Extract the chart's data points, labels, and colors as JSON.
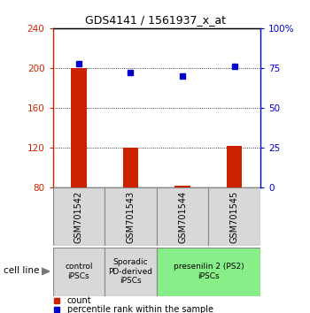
{
  "title": "GDS4141 / 1561937_x_at",
  "samples": [
    "GSM701542",
    "GSM701543",
    "GSM701544",
    "GSM701545"
  ],
  "bar_values": [
    200,
    120,
    82,
    122
  ],
  "bar_baseline": 80,
  "percentile_values": [
    78,
    72,
    70,
    76
  ],
  "ylim_left": [
    80,
    240
  ],
  "ylim_right": [
    0,
    100
  ],
  "yticks_left": [
    80,
    120,
    160,
    200,
    240
  ],
  "yticks_right": [
    0,
    25,
    50,
    75,
    100
  ],
  "ytick_labels_right": [
    "0",
    "25",
    "50",
    "75",
    "100%"
  ],
  "bar_color": "#cc2200",
  "dot_color": "#0000cc",
  "grid_color": "#000000",
  "groups": [
    {
      "label": "control\niPSCs",
      "start": 0,
      "end": 1,
      "color": "#d8d8d8"
    },
    {
      "label": "Sporadic\nPD-derived\niPSCs",
      "start": 1,
      "end": 2,
      "color": "#d8d8d8"
    },
    {
      "label": "presenilin 2 (PS2)\niPSCs",
      "start": 2,
      "end": 4,
      "color": "#88ee88"
    }
  ],
  "cell_line_label": "cell line",
  "legend_count_label": "count",
  "legend_pct_label": "percentile rank within the sample",
  "background_color": "#ffffff",
  "label_area_color": "#d8d8d8"
}
